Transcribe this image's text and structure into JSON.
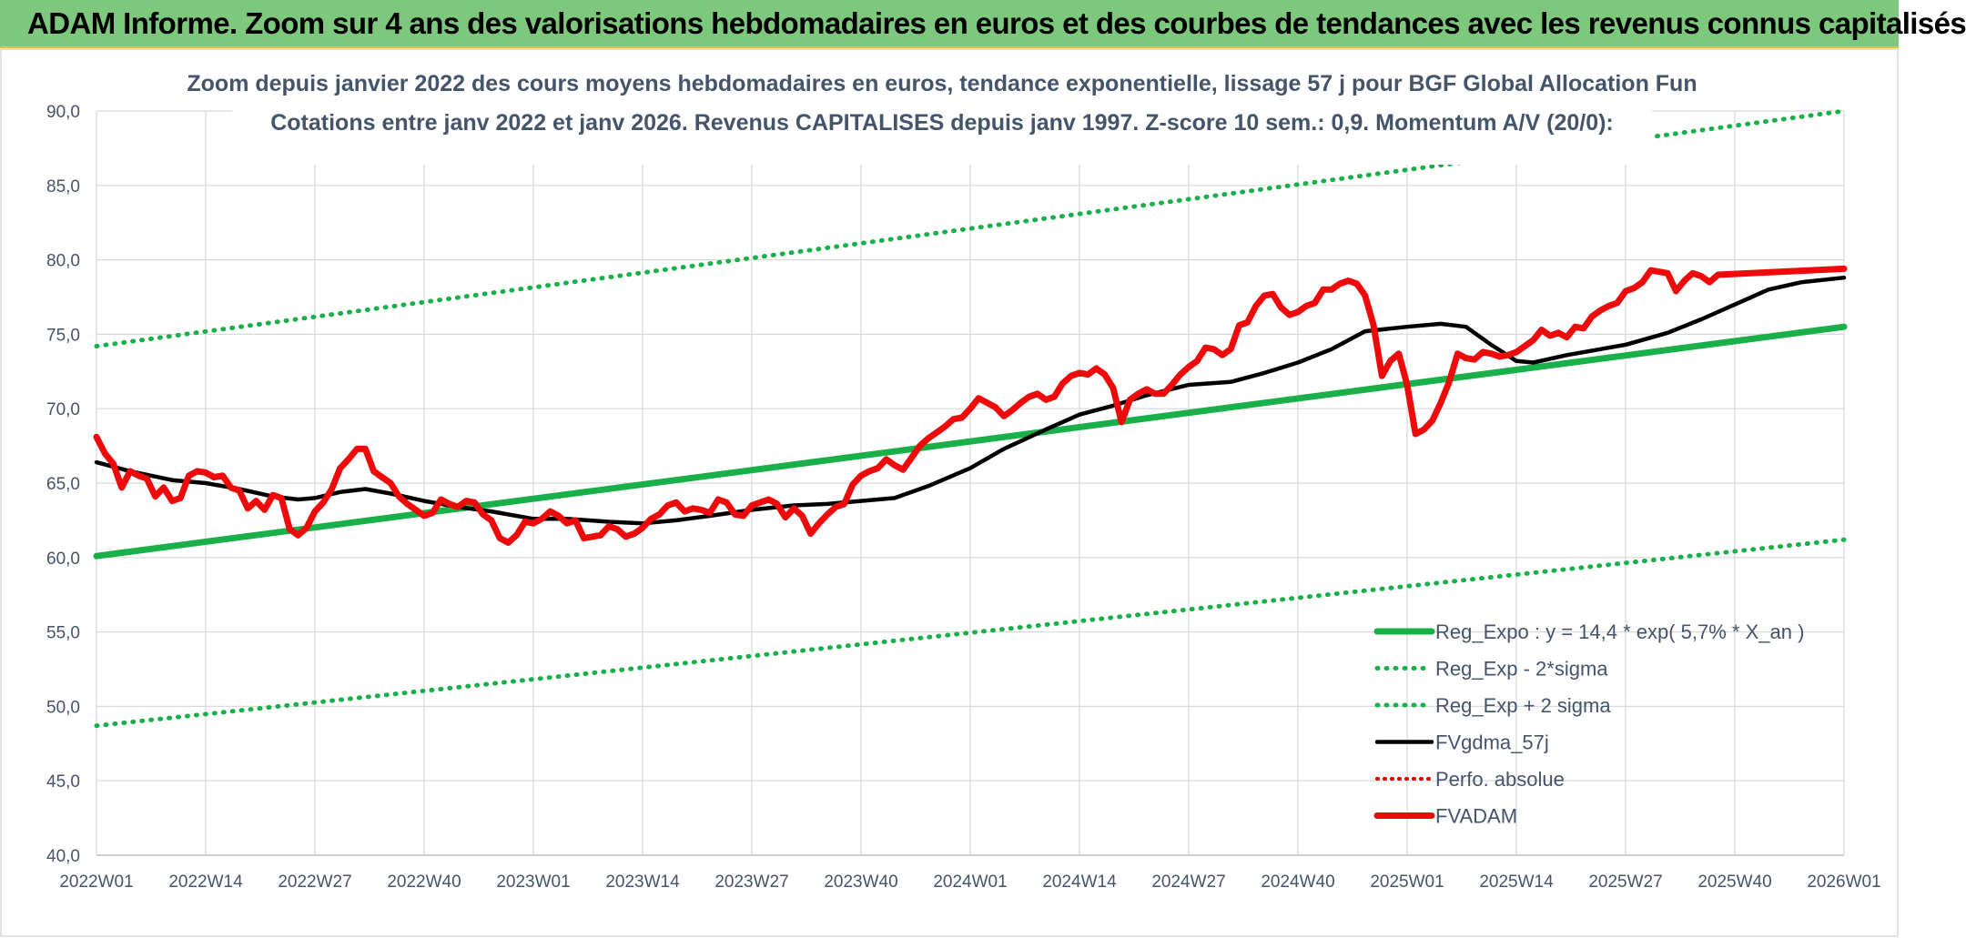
{
  "banner": {
    "title": "ADAM Informe. Zoom sur 4 ans des valorisations hebdomadaires en euros et des courbes de tendances avec les revenus connus capitalisés"
  },
  "colors": {
    "banner_bg": "#7dc87d",
    "trend": "#19b04a",
    "bands": "#19b04a",
    "smooth": "#000000",
    "perf": "#e00000",
    "price": "#ee0a0a"
  },
  "chart_data": {
    "type": "line",
    "title": "Zoom depuis janvier 2022 des cours moyens hebdomadaires en euros, tendance exponentielle, lissage 57 j pour BGF Global Allocation Fun",
    "subtitle": "Cotations entre janv 2022 et janv 2026. Revenus CAPITALISES depuis janv 1997. Z-score 10 sem.: 0,9. Momentum A/V (20/0):",
    "xlabel": "",
    "ylabel": "",
    "ylim": [
      40,
      90
    ],
    "yticks": [
      "90,0",
      "85,0",
      "80,0",
      "75,0",
      "70,0",
      "65,0",
      "60,0",
      "55,0",
      "50,0",
      "45,0",
      "40,0"
    ],
    "xticks": [
      "2022W01",
      "2022W14",
      "2022W27",
      "2022W40",
      "2023W01",
      "2023W14",
      "2023W27",
      "2023W40",
      "2024W01",
      "2024W14",
      "2024W27",
      "2024W40",
      "2025W01",
      "2025W14",
      "2025W27",
      "2025W40",
      "2026W01"
    ],
    "grid": true,
    "legend_position": "bottom-right",
    "series": [
      {
        "name": "Reg_Expo : y = 14,4 * exp( 5,7% *  X_an )",
        "style": "solid-thick",
        "points": [
          [
            "2022W01",
            60.1
          ],
          [
            "2026W01",
            75.5
          ]
        ]
      },
      {
        "name": "Reg_Exp - 2*sigma",
        "style": "dotted",
        "points": [
          [
            "2022W01",
            48.7
          ],
          [
            "2026W01",
            61.2
          ]
        ]
      },
      {
        "name": "Reg_Exp + 2 sigma",
        "style": "dotted",
        "points": [
          [
            "2022W01",
            74.2
          ],
          [
            "2026W01",
            90.0
          ]
        ]
      },
      {
        "name": "FVgdma_57j",
        "style": "solid",
        "points": [
          [
            "2022W01",
            66.4
          ],
          [
            "2022W05",
            65.8
          ],
          [
            "2022W10",
            65.2
          ],
          [
            "2022W14",
            65.0
          ],
          [
            "2022W18",
            64.6
          ],
          [
            "2022W22",
            64.1
          ],
          [
            "2022W25",
            63.9
          ],
          [
            "2022W27",
            64.0
          ],
          [
            "2022W30",
            64.4
          ],
          [
            "2022W33",
            64.6
          ],
          [
            "2022W36",
            64.3
          ],
          [
            "2022W40",
            63.8
          ],
          [
            "2022W44",
            63.4
          ],
          [
            "2022W48",
            63.1
          ],
          [
            "2023W01",
            62.6
          ],
          [
            "2023W05",
            62.6
          ],
          [
            "2023W10",
            62.4
          ],
          [
            "2023W14",
            62.3
          ],
          [
            "2023W18",
            62.5
          ],
          [
            "2023W22",
            62.8
          ],
          [
            "2023W27",
            63.2
          ],
          [
            "2023W32",
            63.5
          ],
          [
            "2023W36",
            63.6
          ],
          [
            "2023W40",
            63.8
          ],
          [
            "2023W44",
            64.0
          ],
          [
            "2023W48",
            64.8
          ],
          [
            "2024W01",
            66.0
          ],
          [
            "2024W05",
            67.3
          ],
          [
            "2024W10",
            68.6
          ],
          [
            "2024W14",
            69.6
          ],
          [
            "2024W18",
            70.2
          ],
          [
            "2024W22",
            70.9
          ],
          [
            "2024W27",
            71.6
          ],
          [
            "2024W32",
            71.8
          ],
          [
            "2024W36",
            72.4
          ],
          [
            "2024W40",
            73.1
          ],
          [
            "2024W44",
            74.0
          ],
          [
            "2024W48",
            75.2
          ],
          [
            "2025W01",
            75.5
          ],
          [
            "2025W05",
            75.7
          ],
          [
            "2025W08",
            75.5
          ],
          [
            "2025W11",
            74.3
          ],
          [
            "2025W14",
            73.2
          ],
          [
            "2025W16",
            73.1
          ],
          [
            "2025W20",
            73.6
          ],
          [
            "2025W24",
            74.0
          ],
          [
            "2025W27",
            74.3
          ],
          [
            "2025W32",
            75.1
          ],
          [
            "2025W36",
            76.0
          ],
          [
            "2025W40",
            77.0
          ],
          [
            "2025W44",
            78.0
          ],
          [
            "2025W48",
            78.5
          ],
          [
            "2026W01",
            78.8
          ]
        ]
      },
      {
        "name": "Perfo. absolue",
        "style": "dotted",
        "points": []
      },
      {
        "name": "FVADAM",
        "style": "solid-thick",
        "points": [
          [
            "2022W01",
            68.1
          ],
          [
            "2022W02",
            67.0
          ],
          [
            "2022W03",
            66.3
          ],
          [
            "2022W04",
            64.7
          ],
          [
            "2022W05",
            65.8
          ],
          [
            "2022W06",
            65.5
          ],
          [
            "2022W07",
            65.3
          ],
          [
            "2022W08",
            64.1
          ],
          [
            "2022W09",
            64.7
          ],
          [
            "2022W10",
            63.8
          ],
          [
            "2022W11",
            64.0
          ],
          [
            "2022W12",
            65.5
          ],
          [
            "2022W13",
            65.8
          ],
          [
            "2022W14",
            65.7
          ],
          [
            "2022W15",
            65.4
          ],
          [
            "2022W16",
            65.5
          ],
          [
            "2022W17",
            64.7
          ],
          [
            "2022W18",
            64.5
          ],
          [
            "2022W19",
            63.3
          ],
          [
            "2022W20",
            63.8
          ],
          [
            "2022W21",
            63.2
          ],
          [
            "2022W22",
            64.2
          ],
          [
            "2022W23",
            64.0
          ],
          [
            "2022W24",
            61.9
          ],
          [
            "2022W25",
            61.5
          ],
          [
            "2022W26",
            62.0
          ],
          [
            "2022W27",
            63.1
          ],
          [
            "2022W28",
            63.7
          ],
          [
            "2022W29",
            64.6
          ],
          [
            "2022W30",
            66.0
          ],
          [
            "2022W31",
            66.6
          ],
          [
            "2022W32",
            67.3
          ],
          [
            "2022W33",
            67.3
          ],
          [
            "2022W34",
            65.8
          ],
          [
            "2022W35",
            65.4
          ],
          [
            "2022W36",
            65.0
          ],
          [
            "2022W37",
            64.1
          ],
          [
            "2022W38",
            63.6
          ],
          [
            "2022W39",
            63.2
          ],
          [
            "2022W40",
            62.8
          ],
          [
            "2022W41",
            63.0
          ],
          [
            "2022W42",
            63.9
          ],
          [
            "2022W43",
            63.6
          ],
          [
            "2022W44",
            63.4
          ],
          [
            "2022W45",
            63.8
          ],
          [
            "2022W46",
            63.7
          ],
          [
            "2022W47",
            62.9
          ],
          [
            "2022W48",
            62.5
          ],
          [
            "2022W49",
            61.3
          ],
          [
            "2022W50",
            61.0
          ],
          [
            "2022W51",
            61.5
          ],
          [
            "2022W52",
            62.4
          ],
          [
            "2023W01",
            62.3
          ],
          [
            "2023W02",
            62.6
          ],
          [
            "2023W03",
            63.1
          ],
          [
            "2023W04",
            62.8
          ],
          [
            "2023W05",
            62.3
          ],
          [
            "2023W06",
            62.5
          ],
          [
            "2023W07",
            61.3
          ],
          [
            "2023W08",
            61.4
          ],
          [
            "2023W09",
            61.5
          ],
          [
            "2023W10",
            62.1
          ],
          [
            "2023W11",
            61.9
          ],
          [
            "2023W12",
            61.4
          ],
          [
            "2023W13",
            61.6
          ],
          [
            "2023W14",
            62.0
          ],
          [
            "2023W15",
            62.6
          ],
          [
            "2023W16",
            62.9
          ],
          [
            "2023W17",
            63.5
          ],
          [
            "2023W18",
            63.7
          ],
          [
            "2023W19",
            63.1
          ],
          [
            "2023W20",
            63.3
          ],
          [
            "2023W21",
            63.2
          ],
          [
            "2023W22",
            63.0
          ],
          [
            "2023W23",
            63.9
          ],
          [
            "2023W24",
            63.7
          ],
          [
            "2023W25",
            62.9
          ],
          [
            "2023W26",
            62.8
          ],
          [
            "2023W27",
            63.5
          ],
          [
            "2023W28",
            63.7
          ],
          [
            "2023W29",
            63.9
          ],
          [
            "2023W30",
            63.6
          ],
          [
            "2023W31",
            62.7
          ],
          [
            "2023W32",
            63.3
          ],
          [
            "2023W33",
            62.8
          ],
          [
            "2023W34",
            61.6
          ],
          [
            "2023W35",
            62.3
          ],
          [
            "2023W36",
            62.9
          ],
          [
            "2023W37",
            63.4
          ],
          [
            "2023W38",
            63.6
          ],
          [
            "2023W39",
            64.9
          ],
          [
            "2023W40",
            65.5
          ],
          [
            "2023W41",
            65.8
          ],
          [
            "2023W42",
            66.0
          ],
          [
            "2023W43",
            66.6
          ],
          [
            "2023W44",
            66.2
          ],
          [
            "2023W45",
            65.9
          ],
          [
            "2023W46",
            66.7
          ],
          [
            "2023W47",
            67.5
          ],
          [
            "2023W48",
            68.0
          ],
          [
            "2023W49",
            68.4
          ],
          [
            "2023W50",
            68.8
          ],
          [
            "2023W51",
            69.3
          ],
          [
            "2023W52",
            69.4
          ],
          [
            "2024W01",
            70.0
          ],
          [
            "2024W02",
            70.7
          ],
          [
            "2024W03",
            70.4
          ],
          [
            "2024W04",
            70.1
          ],
          [
            "2024W05",
            69.5
          ],
          [
            "2024W06",
            69.9
          ],
          [
            "2024W07",
            70.4
          ],
          [
            "2024W08",
            70.8
          ],
          [
            "2024W09",
            71.0
          ],
          [
            "2024W10",
            70.6
          ],
          [
            "2024W11",
            70.8
          ],
          [
            "2024W12",
            71.7
          ],
          [
            "2024W13",
            72.2
          ],
          [
            "2024W14",
            72.4
          ],
          [
            "2024W15",
            72.3
          ],
          [
            "2024W16",
            72.7
          ],
          [
            "2024W17",
            72.3
          ],
          [
            "2024W18",
            71.4
          ],
          [
            "2024W19",
            69.1
          ],
          [
            "2024W20",
            70.6
          ],
          [
            "2024W21",
            71.0
          ],
          [
            "2024W22",
            71.3
          ],
          [
            "2024W23",
            71.0
          ],
          [
            "2024W24",
            71.0
          ],
          [
            "2024W25",
            71.6
          ],
          [
            "2024W26",
            72.3
          ],
          [
            "2024W27",
            72.8
          ],
          [
            "2024W28",
            73.2
          ],
          [
            "2024W29",
            74.1
          ],
          [
            "2024W30",
            74.0
          ],
          [
            "2024W31",
            73.6
          ],
          [
            "2024W32",
            74.0
          ],
          [
            "2024W33",
            75.6
          ],
          [
            "2024W34",
            75.8
          ],
          [
            "2024W35",
            76.9
          ],
          [
            "2024W36",
            77.6
          ],
          [
            "2024W37",
            77.7
          ],
          [
            "2024W38",
            76.8
          ],
          [
            "2024W39",
            76.3
          ],
          [
            "2024W40",
            76.5
          ],
          [
            "2024W41",
            76.9
          ],
          [
            "2024W42",
            77.1
          ],
          [
            "2024W43",
            78.0
          ],
          [
            "2024W44",
            78.0
          ],
          [
            "2024W45",
            78.4
          ],
          [
            "2024W46",
            78.6
          ],
          [
            "2024W47",
            78.4
          ],
          [
            "2024W48",
            77.6
          ],
          [
            "2024W49",
            75.6
          ],
          [
            "2024W50",
            72.2
          ],
          [
            "2024W51",
            73.2
          ],
          [
            "2024W52",
            73.7
          ],
          [
            "2025W01",
            71.6
          ],
          [
            "2025W02",
            68.3
          ],
          [
            "2025W03",
            68.6
          ],
          [
            "2025W04",
            69.2
          ],
          [
            "2025W05",
            70.4
          ],
          [
            "2025W06",
            71.8
          ],
          [
            "2025W07",
            73.7
          ],
          [
            "2025W08",
            73.4
          ],
          [
            "2025W09",
            73.3
          ],
          [
            "2025W10",
            73.8
          ],
          [
            "2025W11",
            73.7
          ],
          [
            "2025W12",
            73.5
          ],
          [
            "2025W13",
            73.6
          ],
          [
            "2025W14",
            73.8
          ],
          [
            "2025W15",
            74.2
          ],
          [
            "2025W16",
            74.6
          ],
          [
            "2025W17",
            75.3
          ],
          [
            "2025W18",
            74.9
          ],
          [
            "2025W19",
            75.1
          ],
          [
            "2025W20",
            74.8
          ],
          [
            "2025W21",
            75.5
          ],
          [
            "2025W22",
            75.4
          ],
          [
            "2025W23",
            76.2
          ],
          [
            "2025W24",
            76.6
          ],
          [
            "2025W25",
            76.9
          ],
          [
            "2025W26",
            77.1
          ],
          [
            "2025W27",
            77.9
          ],
          [
            "2025W28",
            78.1
          ],
          [
            "2025W29",
            78.5
          ],
          [
            "2025W30",
            79.3
          ],
          [
            "2025W31",
            79.2
          ],
          [
            "2025W32",
            79.1
          ],
          [
            "2025W33",
            77.9
          ],
          [
            "2025W34",
            78.6
          ],
          [
            "2025W35",
            79.1
          ],
          [
            "2025W36",
            78.9
          ],
          [
            "2025W37",
            78.5
          ],
          [
            "2025W38",
            79.0
          ],
          [
            "2026W01",
            79.4
          ]
        ]
      }
    ]
  }
}
